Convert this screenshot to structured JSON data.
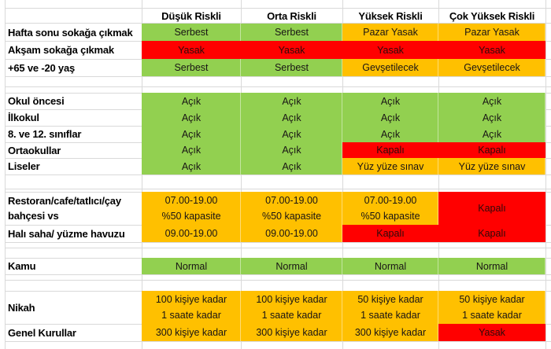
{
  "palette": {
    "green": "#92D050",
    "amber": "#FFC000",
    "red": "#FF0000",
    "gridline": "#D9D9D9",
    "background": "#FFFFFF",
    "text": "#000000",
    "text_on_red": "#2D0A0A"
  },
  "header": {
    "columns": [
      "Düşük Riskli",
      "Orta Riskli",
      "Yüksek Riskli",
      "Çok Yüksek Riskli"
    ]
  },
  "sections": [
    {
      "name": "sokaga-cikma",
      "rows": [
        {
          "label": [
            "Hafta sonu sokağa çıkmak"
          ],
          "cells": [
            {
              "lines": [
                "Serbest"
              ],
              "bg": "green"
            },
            {
              "lines": [
                "Serbest"
              ],
              "bg": "green"
            },
            {
              "lines": [
                "Pazar Yasak"
              ],
              "bg": "amber"
            },
            {
              "lines": [
                "Pazar Yasak"
              ],
              "bg": "amber"
            }
          ]
        },
        {
          "label": [
            "Akşam sokağa çıkmak"
          ],
          "cells": [
            {
              "lines": [
                "Yasak"
              ],
              "bg": "red"
            },
            {
              "lines": [
                "Yasak"
              ],
              "bg": "red"
            },
            {
              "lines": [
                "Yasak"
              ],
              "bg": "red"
            },
            {
              "lines": [
                "Yasak"
              ],
              "bg": "red"
            }
          ]
        },
        {
          "label": [
            "+65 ve -20 yaş"
          ],
          "cells": [
            {
              "lines": [
                "Serbest"
              ],
              "bg": "green"
            },
            {
              "lines": [
                "Serbest"
              ],
              "bg": "green"
            },
            {
              "lines": [
                "Gevşetilecek"
              ],
              "bg": "amber"
            },
            {
              "lines": [
                "Gevşetilecek"
              ],
              "bg": "amber"
            }
          ]
        }
      ]
    },
    {
      "name": "okullar",
      "rows": [
        {
          "label": [
            "Okul öncesi"
          ],
          "cells": [
            {
              "lines": [
                "Açık"
              ],
              "bg": "green"
            },
            {
              "lines": [
                "Açık"
              ],
              "bg": "green"
            },
            {
              "lines": [
                "Açık"
              ],
              "bg": "green"
            },
            {
              "lines": [
                "Açık"
              ],
              "bg": "green"
            }
          ]
        },
        {
          "label": [
            "İlkokul"
          ],
          "cells": [
            {
              "lines": [
                "Açık"
              ],
              "bg": "green"
            },
            {
              "lines": [
                "Açık"
              ],
              "bg": "green"
            },
            {
              "lines": [
                "Açık"
              ],
              "bg": "green"
            },
            {
              "lines": [
                "Açık"
              ],
              "bg": "green"
            }
          ]
        },
        {
          "label": [
            "8. ve 12. sınıflar"
          ],
          "cells": [
            {
              "lines": [
                "Açık"
              ],
              "bg": "green"
            },
            {
              "lines": [
                "Açık"
              ],
              "bg": "green"
            },
            {
              "lines": [
                "Açık"
              ],
              "bg": "green"
            },
            {
              "lines": [
                "Açık"
              ],
              "bg": "green"
            }
          ]
        },
        {
          "label": [
            "Ortaokullar"
          ],
          "cells": [
            {
              "lines": [
                "Açık"
              ],
              "bg": "green"
            },
            {
              "lines": [
                "Açık"
              ],
              "bg": "green"
            },
            {
              "lines": [
                "Kapalı"
              ],
              "bg": "red"
            },
            {
              "lines": [
                "Kapalı"
              ],
              "bg": "red"
            }
          ]
        },
        {
          "label": [
            "Liseler"
          ],
          "cells": [
            {
              "lines": [
                "Açık"
              ],
              "bg": "green"
            },
            {
              "lines": [
                "Açık"
              ],
              "bg": "green"
            },
            {
              "lines": [
                "Yüz yüze sınav"
              ],
              "bg": "amber"
            },
            {
              "lines": [
                "Yüz yüze sınav"
              ],
              "bg": "amber"
            }
          ]
        }
      ]
    },
    {
      "name": "isletmeler",
      "rows": [
        {
          "label": [
            "Restoran/cafe/tatlıcı/çay",
            "bahçesi vs"
          ],
          "cells": [
            {
              "lines": [
                "07.00-19.00",
                "%50 kapasite"
              ],
              "bg": "amber"
            },
            {
              "lines": [
                "07.00-19.00",
                "%50 kapasite"
              ],
              "bg": "amber"
            },
            {
              "lines": [
                "07.00-19.00",
                "%50 kapasite"
              ],
              "bg": "amber"
            },
            {
              "lines": [
                "Kapalı"
              ],
              "bg": "red"
            }
          ]
        },
        {
          "label": [
            "Halı saha/ yüzme havuzu"
          ],
          "cells": [
            {
              "lines": [
                "09.00-19.00"
              ],
              "bg": "amber"
            },
            {
              "lines": [
                "09.00-19.00"
              ],
              "bg": "amber"
            },
            {
              "lines": [
                "Kapalı"
              ],
              "bg": "red"
            },
            {
              "lines": [
                "Kapalı"
              ],
              "bg": "red"
            }
          ]
        }
      ]
    },
    {
      "name": "kamu",
      "rows": [
        {
          "label": [
            "Kamu"
          ],
          "cells": [
            {
              "lines": [
                "Normal"
              ],
              "bg": "green"
            },
            {
              "lines": [
                "Normal"
              ],
              "bg": "green"
            },
            {
              "lines": [
                "Normal"
              ],
              "bg": "green"
            },
            {
              "lines": [
                "Normal"
              ],
              "bg": "green"
            }
          ]
        }
      ]
    },
    {
      "name": "etkinlikler",
      "rows": [
        {
          "label": [
            "Nikah"
          ],
          "cells": [
            {
              "lines": [
                "100 kişiye kadar",
                "1 saate kadar"
              ],
              "bg": "amber"
            },
            {
              "lines": [
                "100 kişiye kadar",
                "1 saate kadar"
              ],
              "bg": "amber"
            },
            {
              "lines": [
                "50 kişiye kadar",
                "1 saate kadar"
              ],
              "bg": "amber"
            },
            {
              "lines": [
                "50 kişiye kadar",
                "1 saate kadar"
              ],
              "bg": "amber"
            }
          ]
        },
        {
          "label": [
            "Genel Kurullar"
          ],
          "cells": [
            {
              "lines": [
                "300 kişiye kadar"
              ],
              "bg": "amber"
            },
            {
              "lines": [
                "300 kişiye kadar"
              ],
              "bg": "amber"
            },
            {
              "lines": [
                "300 kişiye kadar"
              ],
              "bg": "amber"
            },
            {
              "lines": [
                "Yasak"
              ],
              "bg": "red"
            }
          ]
        }
      ]
    }
  ]
}
